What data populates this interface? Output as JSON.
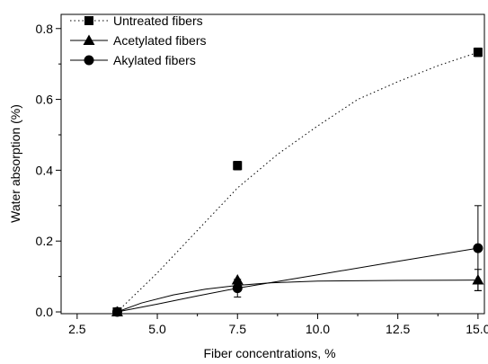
{
  "chart_data": {
    "type": "scatter",
    "title": "",
    "xlabel": "Fiber concentrations, %",
    "ylabel": "Water absorption  (%)",
    "xlim": [
      2.0,
      15.2
    ],
    "ylim": [
      -0.005,
      0.84
    ],
    "xticks": [
      2.5,
      5.0,
      7.5,
      10.0,
      12.5,
      15.0
    ],
    "xtick_labels": [
      "2.5",
      "5.0",
      "7.5",
      "10.0",
      "12.5",
      "15.0"
    ],
    "yticks": [
      0.0,
      0.2,
      0.4,
      0.6,
      0.8
    ],
    "ytick_labels": [
      "0.0",
      "0.2",
      "0.4",
      "0.6",
      "0.8"
    ],
    "grid": false,
    "legend_position": "top-left",
    "series": [
      {
        "name": "Untreated fibers",
        "marker": "square",
        "line": "dotted",
        "points": [
          {
            "x": 3.75,
            "y": 0.0,
            "err": 0.0
          },
          {
            "x": 7.5,
            "y": 0.413,
            "err": 0.012
          },
          {
            "x": 15.0,
            "y": 0.733,
            "err": 0.012
          }
        ],
        "fit": [
          [
            3.75,
            0.0
          ],
          [
            5.0,
            0.11
          ],
          [
            6.25,
            0.23
          ],
          [
            7.5,
            0.35
          ],
          [
            8.75,
            0.445
          ],
          [
            10.0,
            0.525
          ],
          [
            11.25,
            0.6
          ],
          [
            12.5,
            0.65
          ],
          [
            13.75,
            0.695
          ],
          [
            15.0,
            0.733
          ]
        ]
      },
      {
        "name": "Acetylated fibers",
        "marker": "triangle",
        "line": "solid",
        "points": [
          {
            "x": 3.75,
            "y": 0.0,
            "err": 0.0
          },
          {
            "x": 7.5,
            "y": 0.09,
            "err": 0.0
          },
          {
            "x": 15.0,
            "y": 0.09,
            "err": 0.03
          }
        ],
        "fit": [
          [
            3.75,
            0.0
          ],
          [
            4.5,
            0.025
          ],
          [
            5.5,
            0.048
          ],
          [
            6.5,
            0.064
          ],
          [
            7.5,
            0.075
          ],
          [
            8.5,
            0.082
          ],
          [
            10.0,
            0.087
          ],
          [
            12.5,
            0.089
          ],
          [
            15.0,
            0.09
          ]
        ]
      },
      {
        "name": "Akylated fibers",
        "marker": "circle",
        "line": "solid",
        "points": [
          {
            "x": 3.75,
            "y": 0.0,
            "err": 0.0
          },
          {
            "x": 7.5,
            "y": 0.067,
            "err": 0.025
          },
          {
            "x": 15.0,
            "y": 0.18,
            "err": 0.12
          }
        ],
        "fit": [
          [
            3.75,
            0.0
          ],
          [
            5.0,
            0.022
          ],
          [
            6.25,
            0.045
          ],
          [
            7.5,
            0.067
          ],
          [
            10.0,
            0.105
          ],
          [
            12.5,
            0.143
          ],
          [
            15.0,
            0.18
          ]
        ]
      }
    ]
  }
}
